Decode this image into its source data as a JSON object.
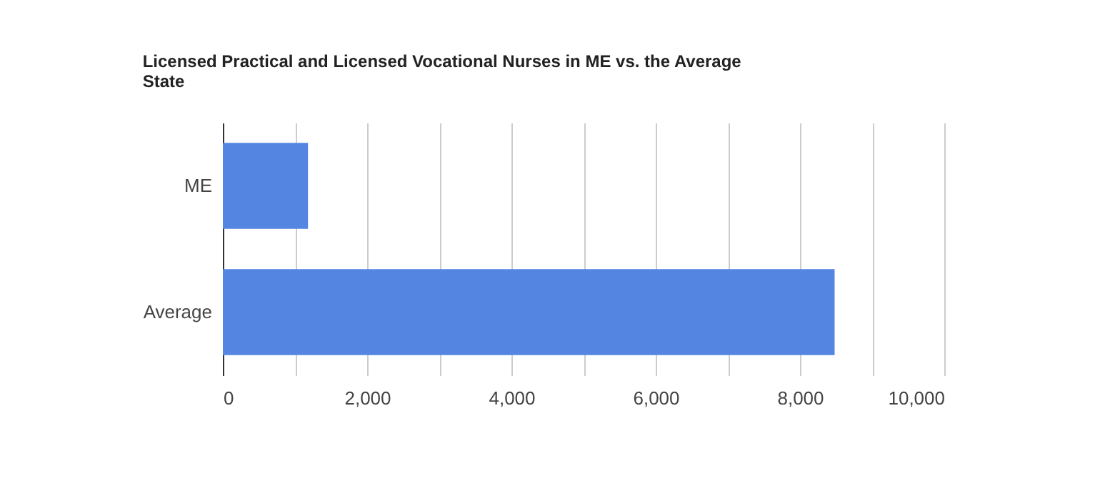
{
  "chart_data": {
    "type": "bar",
    "orientation": "horizontal",
    "title": "Licensed Practical and Licensed Vocational Nurses in ME vs. the Average State",
    "categories": [
      "ME",
      "Average"
    ],
    "values": [
      1180,
      8480
    ],
    "color": "#5385e1",
    "xlim": [
      0,
      10000
    ],
    "xticks": [
      0,
      {
        "value": 1000,
        "label": null
      },
      {
        "value": 2000,
        "label": "2,000"
      },
      {
        "value": 3000,
        "label": null
      },
      {
        "value": 4000,
        "label": "4,000"
      },
      {
        "value": 5000,
        "label": null
      },
      {
        "value": 6000,
        "label": "6,000"
      },
      {
        "value": 7000,
        "label": null
      },
      {
        "value": 8000,
        "label": "8,000"
      },
      {
        "value": 9000,
        "label": null
      },
      {
        "value": 10000,
        "label": "10,000"
      }
    ],
    "grid": "x"
  }
}
